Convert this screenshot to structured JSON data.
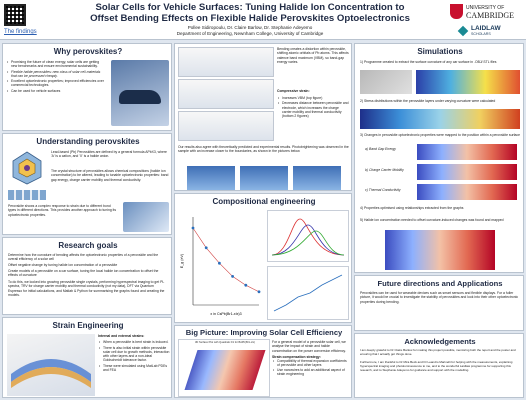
{
  "header": {
    "title_line1": "Solar Cells for Vehicle Surfaces: Tuning Halide Ion Concentration to",
    "title_line2": "Offset Bending Effects on Flexible Halide Perovskites Optoelectronics",
    "authors": "Pollee Sidiropoulu, Dr. Claire Barlow, Dr. Stephanie Adeyemo",
    "department": "Department of Engineering, Newnham College, University of Cambridge",
    "findings_link": "The findings",
    "cambridge_line1": "UNIVERSITY OF",
    "cambridge_line2": "CAMBRIDGE",
    "laidlaw": "LAIDLAW",
    "laidlaw_sub": "SCHOLARS"
  },
  "why": {
    "title": "Why perovskites?",
    "items": [
      "Promising the future of clean energy, solar cells are getting new benchmarks and ensure environmental sustainability.",
      "Flexible halide perovskites: new class of solar cell materials that can be processed cheaply.",
      "Excellent optoelectronic properties; improved efficiencies over commercial technologies.",
      "Can be used for vehicle surfaces"
    ]
  },
  "understanding": {
    "title": "Understanding perovskites",
    "p1": "Lead-based (Pb) Perovskites are defined by a general formula APbX3, where 'A' is a cation, and 'X' is a halide anion.",
    "p2": "The crystal structure of perovskites allows chemical compositions (halide ion concentration) to be altered, leading to tunable optoelectronic properties: band gap energy, charge carrier mobility and thermal conductivity.",
    "p3": "Perovskite shows a complex response to strain due to different bond types in different directions. This provides another approach to tuning its optoelectronic properties."
  },
  "research": {
    "title": "Research goals",
    "p1": "Determine how the curvature of bending affects the optoelectronic properties of a perovskite and the overall efficiency of a solar cell",
    "p2": "Offset negative change by tuning halide ion concentration of a perovskite",
    "p3": "Create models of a perovskite on a car surface, tuning the local halide ion concentration to offset the effects of curvature",
    "p4": "To do this, we looked into growing perovskite single crystals, performing hyperspectral imaging to get PL spectra, TRV for charge carrier mobility and thermal conductivity (not my data), DFT via Quantum Espresso for initial calculations, and Matlab & Python for summarising the graphs found and creating the models."
  },
  "strain": {
    "title": "Strain Engineering",
    "sub": "Internal and external strains:",
    "items": [
      "When a perovskite is bent strain is induced.",
      "There is also initial strain within perovskite solar cell due to growth methods, interaction with other layers and a non-ideal Goldschmidt tolerance factor.",
      "These were simulated using MatLab PDEs and FEA"
    ]
  },
  "bending": {
    "p1": "Bending creates a distortion within perovskite, shifting atomic orbitals of Pb atoms. This affects valence band maximum (VBM), so band-gap energy varies.",
    "sub": "Compressive strain:",
    "items": [
      "Increases VBM (top figure)",
      "Decreases distance between perovskite and electrode, which increases the charge carrier mobility and thermal conductivity (bottom 2 figures)"
    ],
    "p2": "Our results also agree with theoretically predicted and experimental results. Photobrightening was observed in the sample with an increase closer to the boundaries, as shown in the pictures below."
  },
  "comp": {
    "title": "Compositional engineering",
    "chart1": {
      "ylabel": "E_g (eV)",
      "xlabel": "x in CsPb(Br1-xIx)3",
      "x": [
        0,
        0.2,
        0.4,
        0.6,
        0.8,
        1.0
      ],
      "y": [
        2.3,
        2.12,
        1.98,
        1.86,
        1.78,
        1.72
      ]
    }
  },
  "bigpicture": {
    "title": "Big Picture: Improving Solar Cell Efficiency",
    "p1": "For a general model of a perovskite solar cell, we analyse the impact of strain and halide concentration on the power conversion efficiency.",
    "sub": "Strain compensation strategy:",
    "items": [
      "Compatibility of thermal expansion coefficients of perovskite and other layers",
      "Use nanowires to add an additional aspect of strain engineering"
    ],
    "plot_title": "3D Surface Plot with Quadratic Fit for BAPb(Br1-xIx)"
  },
  "simulations": {
    "title": "Simulations",
    "s1": "1) Programme created to extract the surface curvature of any car surface in .OBJ/.STL files",
    "s2": "2) Stress distributions within the perovskite layers under varying curvature were calculated",
    "s3": "3) Changes in perovskite optoelectronic properties were mapped to the position within a perovskite surface",
    "a": "a) Band Gap Energy",
    "b": "b) Charge Carrier Mobility",
    "c": "c) Thermal Conductivity",
    "s4": "4) Properties optimised using relationships extracted from the graphs",
    "s5": "5) Halide ion concentration needed to offset curvature-induced changes was found and mapped"
  },
  "future": {
    "title": "Future directions and Applications",
    "p1": "Perovskites can be used for wearable devices such as smart sensors and flexible displays. For a fuller picture, it would be crucial to investigate the stability of perovskites and look into their other optoelectronic properties during bending."
  },
  "ack": {
    "title": "Acknowledgements",
    "p1": "I am deeply grateful to Dr Claire Barlow for making this project possible, mentoring both the report and the poster and ensuring that I actually got things done.",
    "p2": "Furthermore, I am thankful to Dr Mira Beck and Dr Leandro Marinelli for helping with the measurements, explaining hyperspectral imaging and photoluminescence to me, and to the wonderful Laidlaw programme for supporting this research, and to Stephanie Adeyemo for guidance and support with the modelling."
  }
}
